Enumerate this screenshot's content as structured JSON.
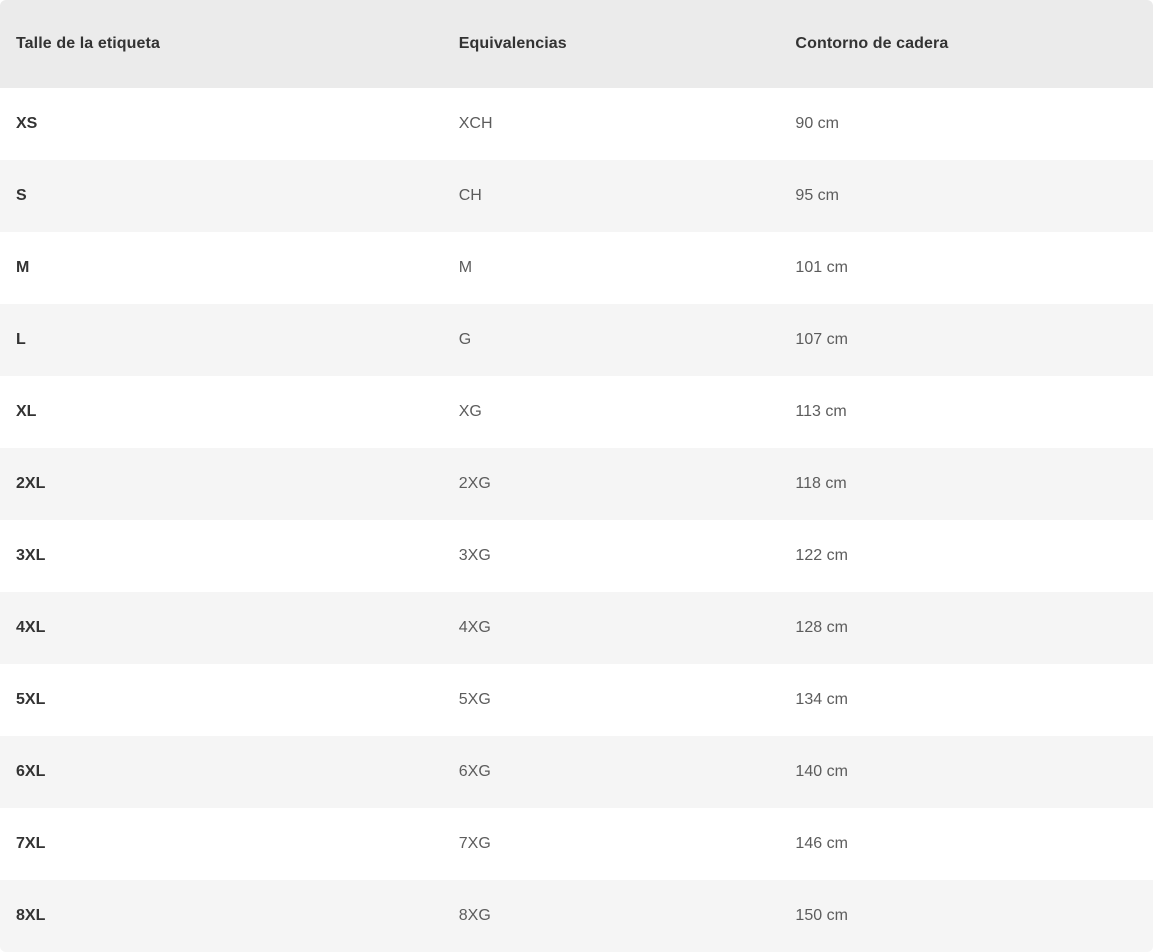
{
  "table": {
    "columns": [
      {
        "label": "Talle de la etiqueta"
      },
      {
        "label": "Equivalencias"
      },
      {
        "label": "Contorno de cadera"
      }
    ],
    "rows": [
      {
        "size": "XS",
        "equivalence": "XCH",
        "hip": "90 cm"
      },
      {
        "size": "S",
        "equivalence": "CH",
        "hip": "95 cm"
      },
      {
        "size": "M",
        "equivalence": "M",
        "hip": "101 cm"
      },
      {
        "size": "L",
        "equivalence": "G",
        "hip": "107 cm"
      },
      {
        "size": "XL",
        "equivalence": "XG",
        "hip": "113 cm"
      },
      {
        "size": "2XL",
        "equivalence": "2XG",
        "hip": "118 cm"
      },
      {
        "size": "3XL",
        "equivalence": "3XG",
        "hip": "122 cm"
      },
      {
        "size": "4XL",
        "equivalence": "4XG",
        "hip": "128 cm"
      },
      {
        "size": "5XL",
        "equivalence": "5XG",
        "hip": "134 cm"
      },
      {
        "size": "6XL",
        "equivalence": "6XG",
        "hip": "140 cm"
      },
      {
        "size": "7XL",
        "equivalence": "7XG",
        "hip": "146 cm"
      },
      {
        "size": "8XL",
        "equivalence": "8XG",
        "hip": "150 cm"
      }
    ]
  },
  "colors": {
    "header_bg": "#ebebeb",
    "row_bg": "#ffffff",
    "row_alt_bg": "#f5f5f5",
    "text_primary": "#333333",
    "text_secondary": "#5c5c5c"
  }
}
